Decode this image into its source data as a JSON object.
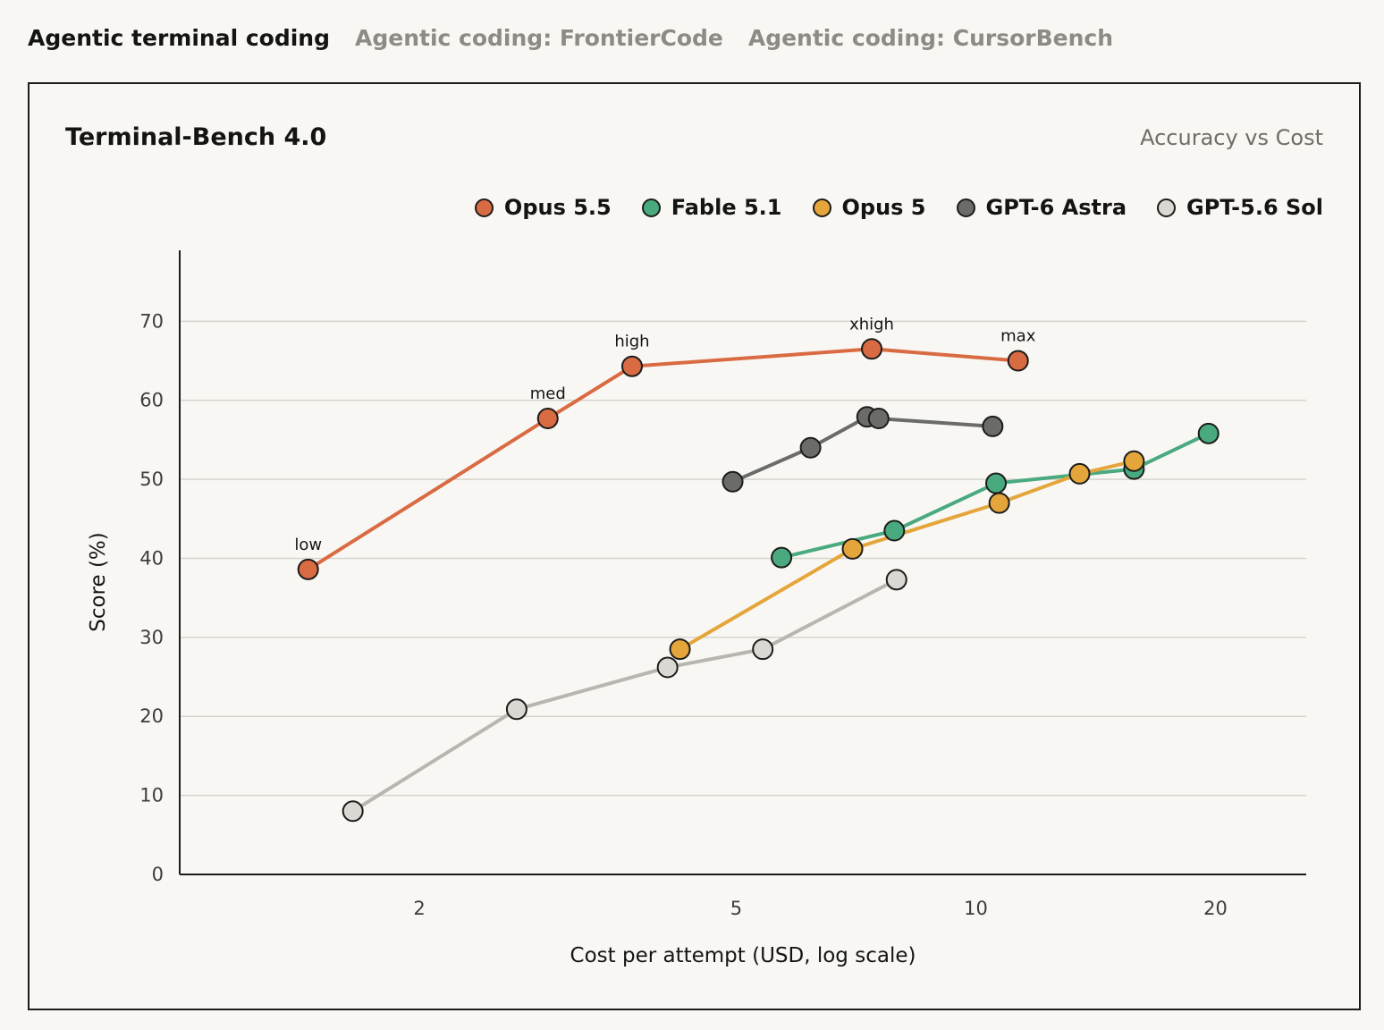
{
  "tabs": [
    {
      "label": "Agentic terminal coding",
      "active": true
    },
    {
      "label": "Agentic coding: FrontierCode",
      "active": false
    },
    {
      "label": "Agentic coding: CursorBench",
      "active": false
    }
  ],
  "chart_data": {
    "type": "line",
    "title": "Terminal-Bench 4.0",
    "subtitle": "Accuracy vs Cost",
    "xlabel": "Cost per attempt (USD, log scale)",
    "ylabel": "Score (%)",
    "xscale": "log",
    "xlim": [
      1,
      26
    ],
    "ylim": [
      0,
      74
    ],
    "xticks": [
      2,
      5,
      10,
      20
    ],
    "yticks": [
      0,
      10,
      20,
      30,
      40,
      50,
      60,
      70
    ],
    "grid": "horizontal",
    "legend_position": "top-right",
    "series": [
      {
        "name": "Opus 5.5",
        "color": "#d96b43",
        "line_color": "#d96b43",
        "points": [
          {
            "x": 1.45,
            "y": 38.6,
            "label": "low"
          },
          {
            "x": 2.9,
            "y": 57.7,
            "label": "med"
          },
          {
            "x": 3.7,
            "y": 64.3,
            "label": "high"
          },
          {
            "x": 7.4,
            "y": 66.5,
            "label": "xhigh"
          },
          {
            "x": 11.3,
            "y": 65.0,
            "label": "max"
          }
        ]
      },
      {
        "name": "Fable 5.1",
        "color": "#4aaa7f",
        "line_color": "#4aaa7f",
        "points": [
          {
            "x": 5.7,
            "y": 40.1
          },
          {
            "x": 7.9,
            "y": 43.5
          },
          {
            "x": 10.6,
            "y": 49.5
          },
          {
            "x": 15.8,
            "y": 51.3
          },
          {
            "x": 19.6,
            "y": 55.8
          }
        ]
      },
      {
        "name": "Opus 5",
        "color": "#e4a63b",
        "line_color": "#e4a63b",
        "points": [
          {
            "x": 4.25,
            "y": 28.5
          },
          {
            "x": 7.0,
            "y": 41.2
          },
          {
            "x": 10.7,
            "y": 47.0
          },
          {
            "x": 13.5,
            "y": 50.7
          },
          {
            "x": 15.8,
            "y": 52.3
          }
        ]
      },
      {
        "name": "GPT-6 Astra",
        "color": "#6b6b67",
        "line_color": "#6b6b67",
        "points": [
          {
            "x": 4.95,
            "y": 49.7
          },
          {
            "x": 6.2,
            "y": 54.0
          },
          {
            "x": 7.3,
            "y": 57.9
          },
          {
            "x": 7.55,
            "y": 57.7
          },
          {
            "x": 10.5,
            "y": 56.7
          }
        ]
      },
      {
        "name": "GPT-5.6 Sol",
        "color": "#d9d8d3",
        "line_color": "#b8b6b0",
        "points": [
          {
            "x": 1.65,
            "y": 8.0
          },
          {
            "x": 2.65,
            "y": 20.9
          },
          {
            "x": 4.1,
            "y": 26.2
          },
          {
            "x": 5.4,
            "y": 28.5
          },
          {
            "x": 7.95,
            "y": 37.3
          }
        ]
      }
    ]
  }
}
